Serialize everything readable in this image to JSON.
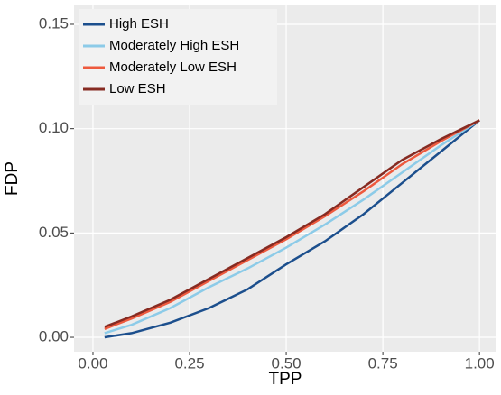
{
  "chart_data": {
    "type": "line",
    "x_label": "TPP",
    "y_label": "FDP",
    "x": [
      0.03,
      0.1,
      0.2,
      0.3,
      0.4,
      0.5,
      0.6,
      0.7,
      0.8,
      0.9,
      1.0
    ],
    "series": [
      {
        "name": "High ESH",
        "color": "#1c4f8d",
        "values": [
          0.0,
          0.002,
          0.007,
          0.014,
          0.023,
          0.035,
          0.046,
          0.059,
          0.074,
          0.089,
          0.104
        ]
      },
      {
        "name": "Moderately High ESH",
        "color": "#8ccbe8",
        "values": [
          0.002,
          0.006,
          0.014,
          0.024,
          0.033,
          0.043,
          0.054,
          0.066,
          0.079,
          0.092,
          0.104
        ]
      },
      {
        "name": "Moderately Low ESH",
        "color": "#ee5a3e",
        "values": [
          0.004,
          0.009,
          0.017,
          0.027,
          0.037,
          0.047,
          0.058,
          0.07,
          0.083,
          0.094,
          0.104
        ]
      },
      {
        "name": "Low ESH",
        "color": "#862b22",
        "values": [
          0.005,
          0.01,
          0.018,
          0.028,
          0.038,
          0.048,
          0.059,
          0.072,
          0.085,
          0.095,
          0.104
        ]
      }
    ],
    "xlim": [
      -0.049,
      1.044
    ],
    "ylim": [
      -0.0069,
      0.1595
    ],
    "xticks": [
      {
        "value": 0,
        "label": "0.00"
      },
      {
        "value": 0.25,
        "label": "0.25"
      },
      {
        "value": 0.5,
        "label": "0.50"
      },
      {
        "value": 0.75,
        "label": "0.75"
      },
      {
        "value": 1,
        "label": "1.00"
      }
    ],
    "yticks": [
      {
        "value": 0,
        "label": "0.00"
      },
      {
        "value": 0.05,
        "label": "0.05"
      },
      {
        "value": 0.1,
        "label": "0.10"
      },
      {
        "value": 0.15,
        "label": "0.15"
      }
    ],
    "grid": true,
    "legend": "top-left"
  }
}
